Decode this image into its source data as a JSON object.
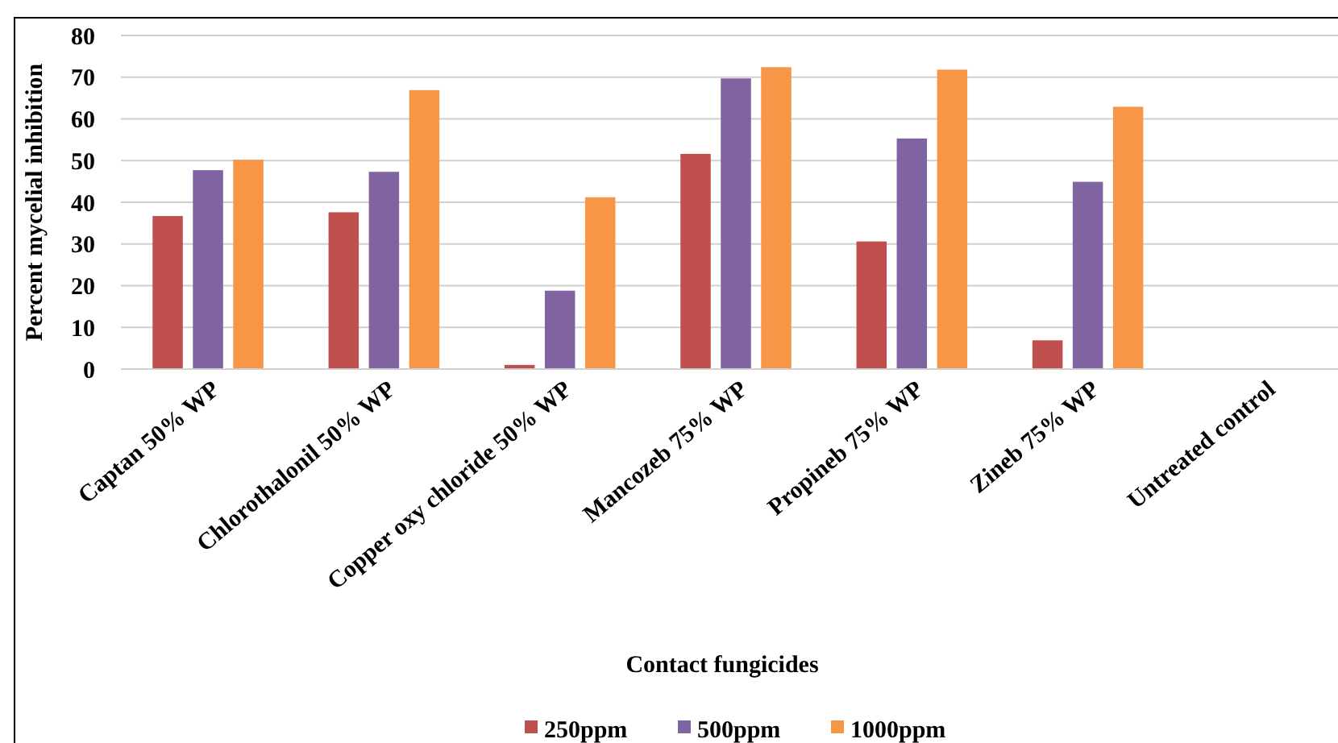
{
  "chart_data": {
    "type": "bar",
    "xlabel": "Contact fungicides",
    "ylabel": "Percent mycelial inhibition",
    "categories": [
      "Captan 50% WP",
      "Chlorothalonil 50% WP",
      "Copper oxy chloride 50% WP",
      "Mancozeb 75% WP",
      "Propineb 75% WP",
      "Zineb 75% WP",
      "Untreated control"
    ],
    "series": [
      {
        "name": "250ppm",
        "color": "#c0504d",
        "values": [
          36.7,
          37.6,
          1,
          51.6,
          30.6,
          6.9,
          0
        ]
      },
      {
        "name": "500ppm",
        "color": "#8064a2",
        "values": [
          47.7,
          47.3,
          18.8,
          69.7,
          55.3,
          44.9,
          0
        ]
      },
      {
        "name": "1000ppm",
        "color": "#f79646",
        "values": [
          50.2,
          66.9,
          41.2,
          72.4,
          71.8,
          62.9,
          0
        ]
      }
    ],
    "ylim": [
      0,
      80
    ],
    "yticks": [
      0,
      10,
      20,
      30,
      40,
      50,
      60,
      70,
      80
    ],
    "grid": "y",
    "legend": "bottom"
  }
}
